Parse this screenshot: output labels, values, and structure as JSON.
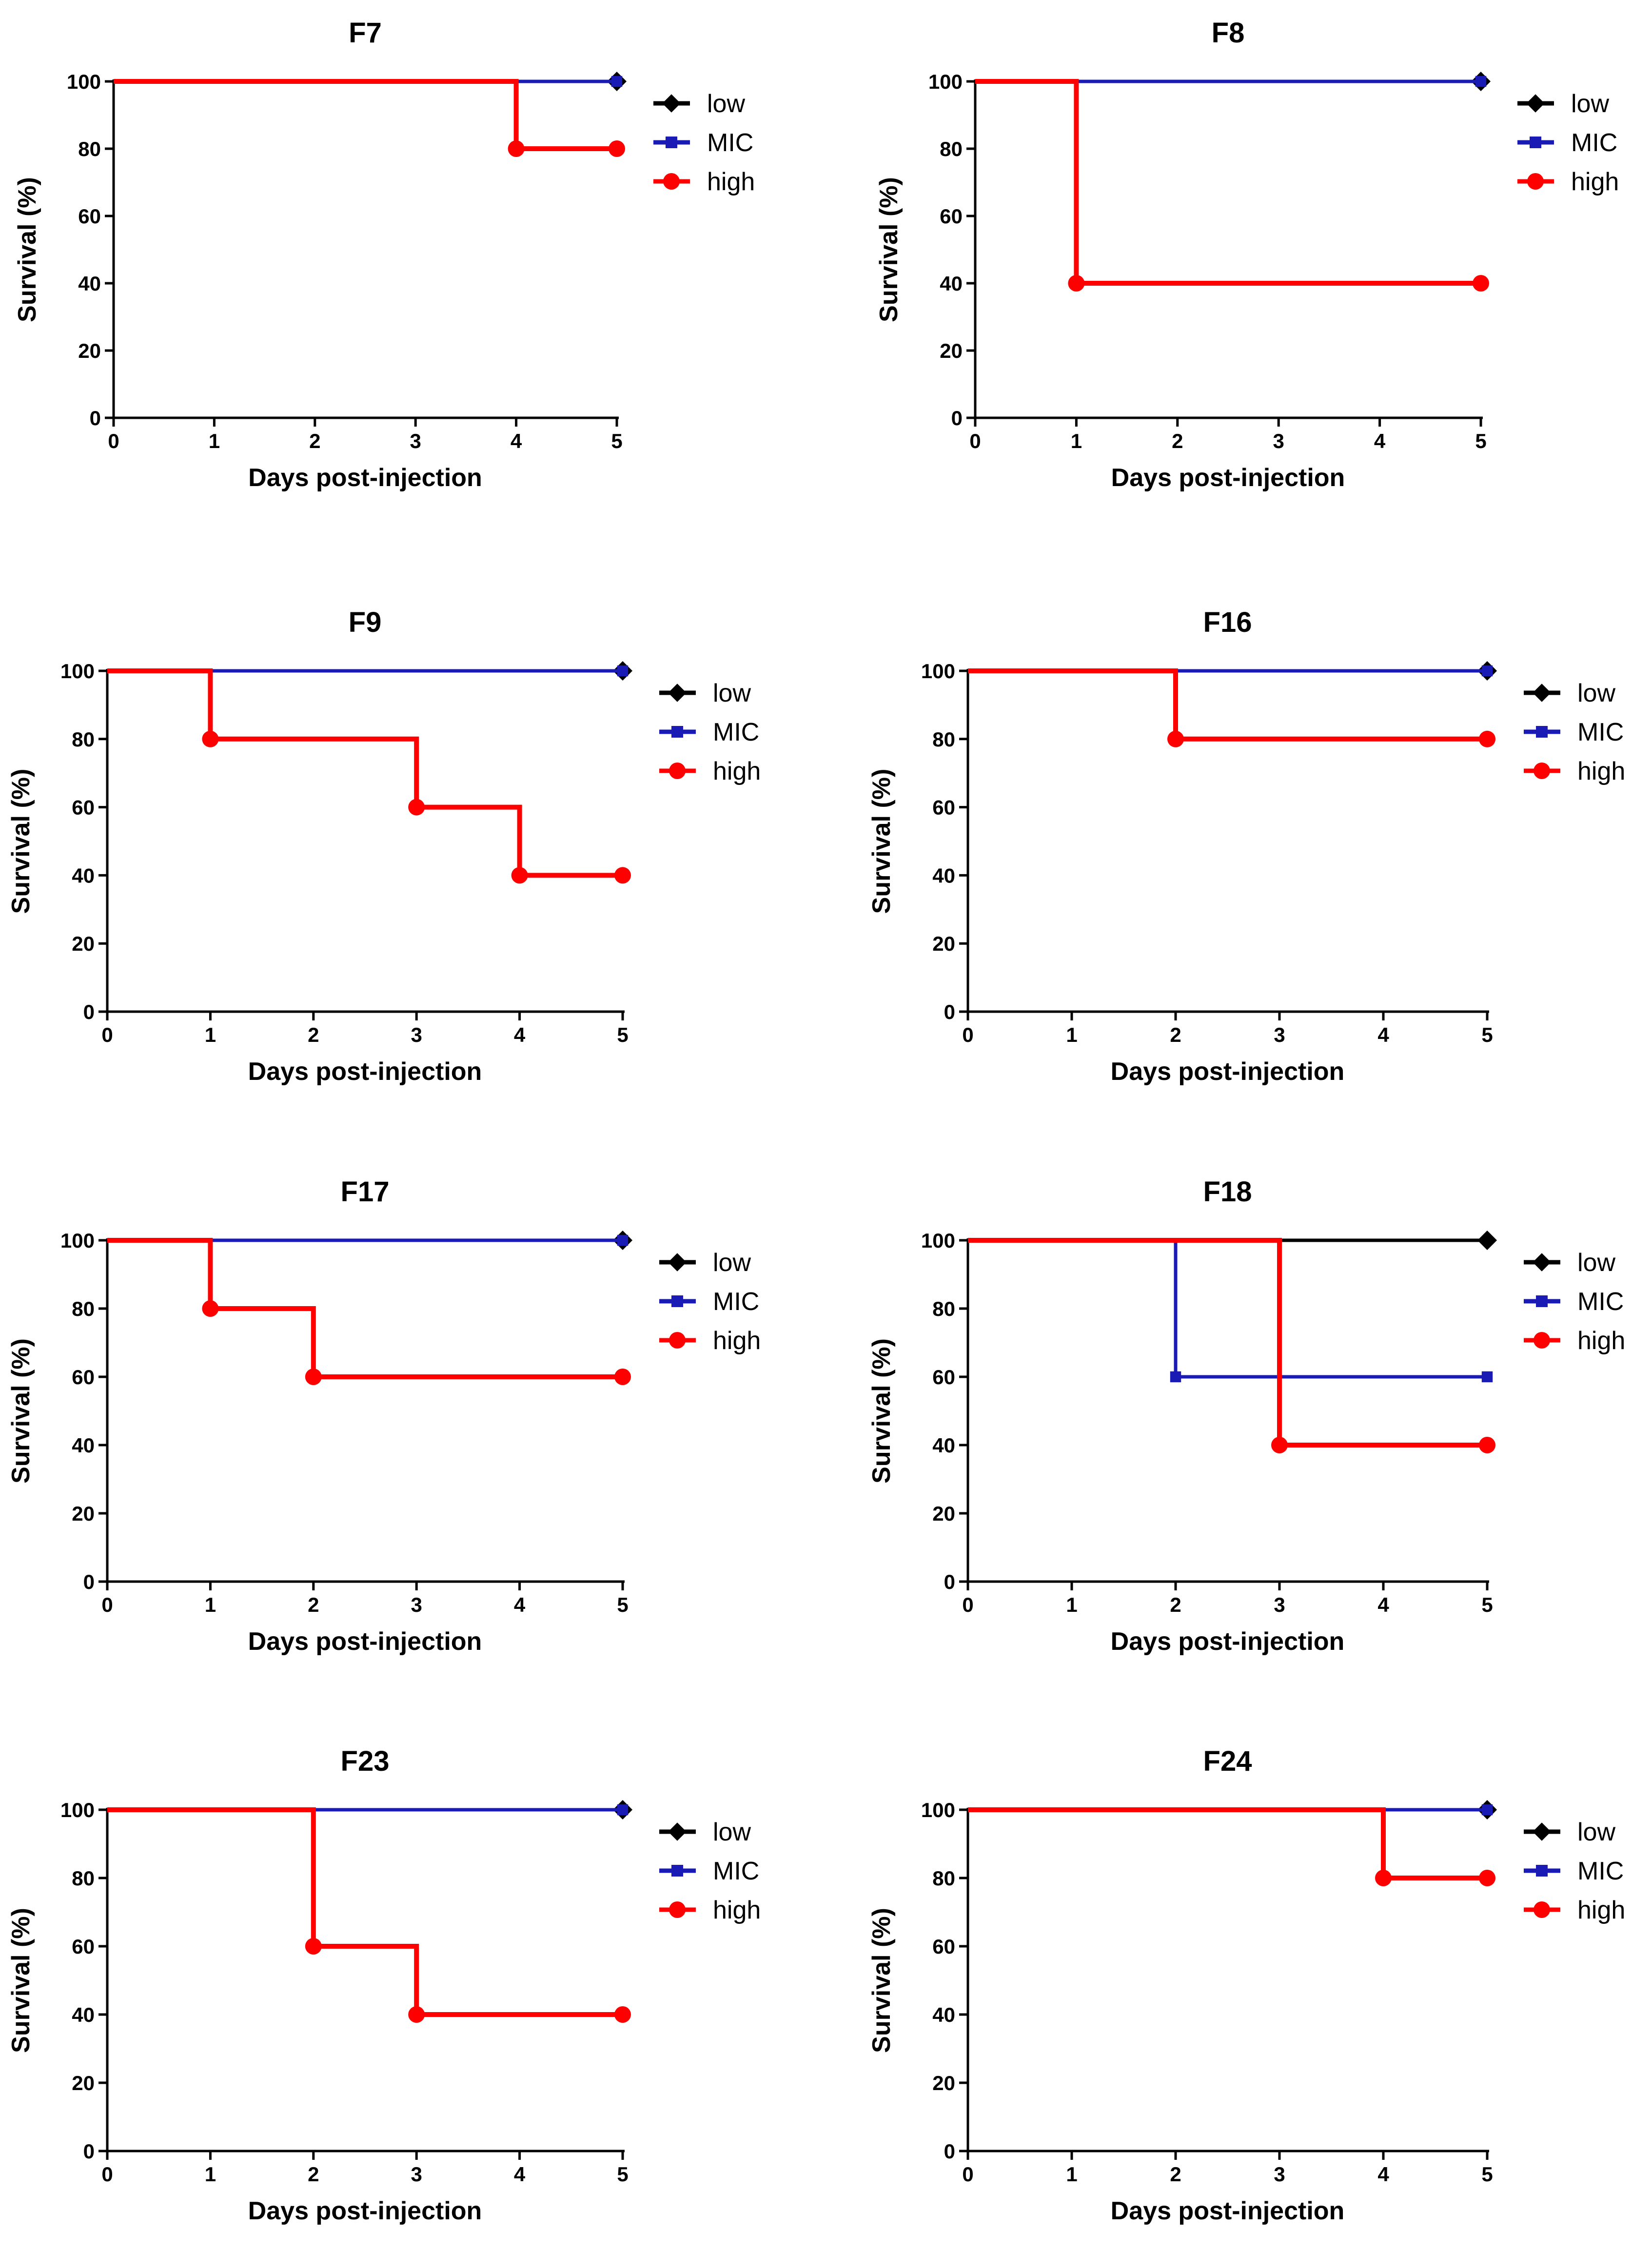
{
  "legend_names": [
    "low",
    "MIC",
    "high"
  ],
  "colors": {
    "low": "#000000",
    "MIC": "#1a1ab4",
    "high": "#ff0000"
  },
  "chart_data": [
    {
      "type": "line",
      "title": "F7",
      "xlabel": "Days post-injection",
      "ylabel": "Survival (%)",
      "xlim": [
        0,
        5
      ],
      "ylim": [
        0,
        100
      ],
      "xticks": [
        "0",
        "1",
        "2",
        "3",
        "4",
        "5"
      ],
      "yticks": [
        "0",
        "20",
        "40",
        "60",
        "80",
        "100"
      ],
      "series": [
        {
          "name": "low",
          "x": [
            0,
            5
          ],
          "y": [
            100,
            100
          ],
          "markers": [
            [
              5,
              100
            ]
          ]
        },
        {
          "name": "MIC",
          "x": [
            0,
            5
          ],
          "y": [
            100,
            100
          ],
          "markers": [
            [
              5,
              100
            ]
          ]
        },
        {
          "name": "high",
          "x": [
            0,
            4,
            5
          ],
          "y": [
            100,
            80,
            80
          ],
          "markers": [
            [
              4,
              80
            ],
            [
              5,
              80
            ]
          ]
        }
      ]
    },
    {
      "type": "line",
      "title": "F8",
      "xlabel": "Days post-injection",
      "ylabel": "Survival (%)",
      "xlim": [
        0,
        5
      ],
      "ylim": [
        0,
        100
      ],
      "xticks": [
        "0",
        "1",
        "2",
        "3",
        "4",
        "5"
      ],
      "yticks": [
        "0",
        "20",
        "40",
        "60",
        "80",
        "100"
      ],
      "series": [
        {
          "name": "low",
          "x": [
            0,
            5
          ],
          "y": [
            100,
            100
          ],
          "markers": [
            [
              5,
              100
            ]
          ]
        },
        {
          "name": "MIC",
          "x": [
            0,
            5
          ],
          "y": [
            100,
            100
          ],
          "markers": [
            [
              5,
              100
            ]
          ]
        },
        {
          "name": "high",
          "x": [
            0,
            1,
            5
          ],
          "y": [
            100,
            40,
            40
          ],
          "markers": [
            [
              1,
              40
            ],
            [
              5,
              40
            ]
          ]
        }
      ]
    },
    {
      "type": "line",
      "title": "F9",
      "xlabel": "Days post-injection",
      "ylabel": "Survival (%)",
      "xlim": [
        0,
        5
      ],
      "ylim": [
        0,
        100
      ],
      "xticks": [
        "0",
        "1",
        "2",
        "3",
        "4",
        "5"
      ],
      "yticks": [
        "0",
        "20",
        "40",
        "60",
        "80",
        "100"
      ],
      "series": [
        {
          "name": "low",
          "x": [
            0,
            5
          ],
          "y": [
            100,
            100
          ],
          "markers": [
            [
              5,
              100
            ]
          ]
        },
        {
          "name": "MIC",
          "x": [
            0,
            5
          ],
          "y": [
            100,
            100
          ],
          "markers": [
            [
              5,
              100
            ]
          ]
        },
        {
          "name": "high",
          "x": [
            0,
            1,
            3,
            4,
            5
          ],
          "y": [
            100,
            80,
            60,
            40,
            40
          ],
          "markers": [
            [
              1,
              80
            ],
            [
              3,
              60
            ],
            [
              4,
              40
            ],
            [
              5,
              40
            ]
          ]
        }
      ]
    },
    {
      "type": "line",
      "title": "F16",
      "xlabel": "Days post-injection",
      "ylabel": "Survival (%)",
      "xlim": [
        0,
        5
      ],
      "ylim": [
        0,
        100
      ],
      "xticks": [
        "0",
        "1",
        "2",
        "3",
        "4",
        "5"
      ],
      "yticks": [
        "0",
        "20",
        "40",
        "60",
        "80",
        "100"
      ],
      "series": [
        {
          "name": "low",
          "x": [
            0,
            5
          ],
          "y": [
            100,
            100
          ],
          "markers": [
            [
              5,
              100
            ]
          ]
        },
        {
          "name": "MIC",
          "x": [
            0,
            5
          ],
          "y": [
            100,
            100
          ],
          "markers": [
            [
              5,
              100
            ]
          ]
        },
        {
          "name": "high",
          "x": [
            0,
            2,
            5
          ],
          "y": [
            100,
            80,
            80
          ],
          "markers": [
            [
              2,
              80
            ],
            [
              5,
              80
            ]
          ]
        }
      ]
    },
    {
      "type": "line",
      "title": "F17",
      "xlabel": "Days post-injection",
      "ylabel": "Survival (%)",
      "xlim": [
        0,
        5
      ],
      "ylim": [
        0,
        100
      ],
      "xticks": [
        "0",
        "1",
        "2",
        "3",
        "4",
        "5"
      ],
      "yticks": [
        "0",
        "20",
        "40",
        "60",
        "80",
        "100"
      ],
      "series": [
        {
          "name": "low",
          "x": [
            0,
            5
          ],
          "y": [
            100,
            100
          ],
          "markers": [
            [
              5,
              100
            ]
          ]
        },
        {
          "name": "MIC",
          "x": [
            0,
            5
          ],
          "y": [
            100,
            100
          ],
          "markers": [
            [
              5,
              100
            ]
          ]
        },
        {
          "name": "high",
          "x": [
            0,
            1,
            2,
            5
          ],
          "y": [
            100,
            80,
            60,
            60
          ],
          "markers": [
            [
              1,
              80
            ],
            [
              2,
              60
            ],
            [
              5,
              60
            ]
          ]
        }
      ]
    },
    {
      "type": "line",
      "title": "F18",
      "xlabel": "Days post-injection",
      "ylabel": "Survival (%)",
      "xlim": [
        0,
        5
      ],
      "ylim": [
        0,
        100
      ],
      "xticks": [
        "0",
        "1",
        "2",
        "3",
        "4",
        "5"
      ],
      "yticks": [
        "0",
        "20",
        "40",
        "60",
        "80",
        "100"
      ],
      "series": [
        {
          "name": "low",
          "x": [
            0,
            5
          ],
          "y": [
            100,
            100
          ],
          "markers": [
            [
              5,
              100
            ]
          ]
        },
        {
          "name": "MIC",
          "x": [
            0,
            2,
            5
          ],
          "y": [
            100,
            60,
            60
          ],
          "markers": [
            [
              2,
              60
            ],
            [
              5,
              60
            ]
          ]
        },
        {
          "name": "high",
          "x": [
            0,
            3,
            5
          ],
          "y": [
            100,
            40,
            40
          ],
          "markers": [
            [
              3,
              40
            ],
            [
              5,
              40
            ]
          ]
        }
      ]
    },
    {
      "type": "line",
      "title": "F23",
      "xlabel": "Days post-injection",
      "ylabel": "Survival (%)",
      "xlim": [
        0,
        5
      ],
      "ylim": [
        0,
        100
      ],
      "xticks": [
        "0",
        "1",
        "2",
        "3",
        "4",
        "5"
      ],
      "yticks": [
        "0",
        "20",
        "40",
        "60",
        "80",
        "100"
      ],
      "series": [
        {
          "name": "low",
          "x": [
            0,
            5
          ],
          "y": [
            100,
            100
          ],
          "markers": [
            [
              5,
              100
            ]
          ]
        },
        {
          "name": "MIC",
          "x": [
            0,
            5
          ],
          "y": [
            100,
            100
          ],
          "markers": [
            [
              5,
              100
            ]
          ]
        },
        {
          "name": "high",
          "x": [
            0,
            2,
            3,
            5
          ],
          "y": [
            100,
            60,
            40,
            40
          ],
          "markers": [
            [
              2,
              60
            ],
            [
              3,
              40
            ],
            [
              5,
              40
            ]
          ]
        }
      ]
    },
    {
      "type": "line",
      "title": "F24",
      "xlabel": "Days post-injection",
      "ylabel": "Survival (%)",
      "xlim": [
        0,
        5
      ],
      "ylim": [
        0,
        100
      ],
      "xticks": [
        "0",
        "1",
        "2",
        "3",
        "4",
        "5"
      ],
      "yticks": [
        "0",
        "20",
        "40",
        "60",
        "80",
        "100"
      ],
      "series": [
        {
          "name": "low",
          "x": [
            0,
            5
          ],
          "y": [
            100,
            100
          ],
          "markers": [
            [
              5,
              100
            ]
          ]
        },
        {
          "name": "MIC",
          "x": [
            0,
            5
          ],
          "y": [
            100,
            100
          ],
          "markers": [
            [
              5,
              100
            ]
          ]
        },
        {
          "name": "high",
          "x": [
            0,
            4,
            5
          ],
          "y": [
            100,
            80,
            80
          ],
          "markers": [
            [
              4,
              80
            ],
            [
              5,
              80
            ]
          ]
        }
      ]
    }
  ]
}
